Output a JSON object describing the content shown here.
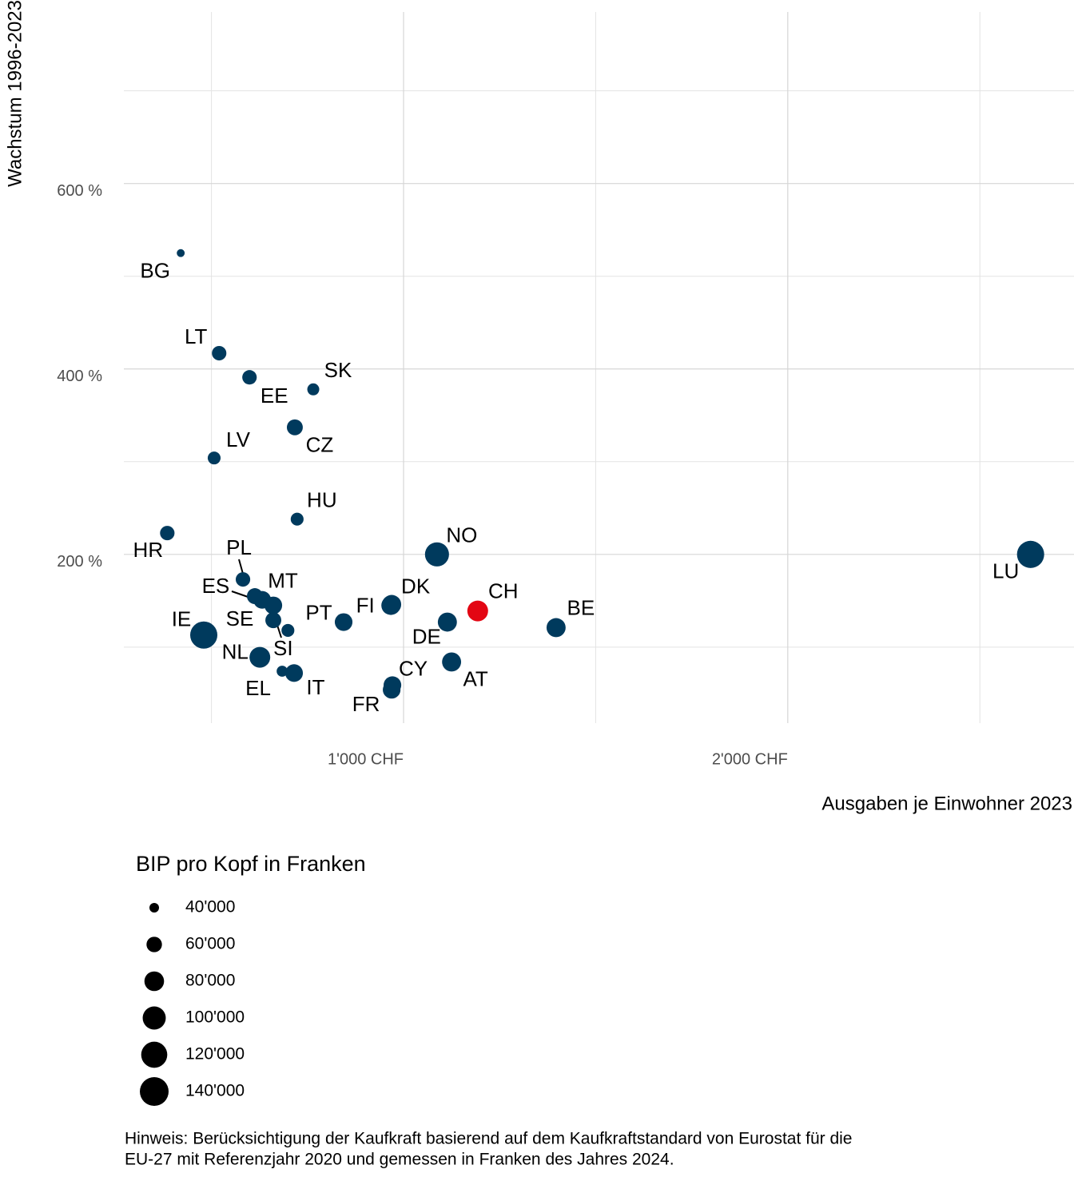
{
  "chart_data": {
    "type": "scatter",
    "ylabel": "Wachstum 1996-2023",
    "xlabel": "Ausgaben je Einwohner 2023",
    "labels": [
      "BG",
      "LT",
      "EE",
      "SK",
      "CZ",
      "LV",
      "HU",
      "HR",
      "NO",
      "LU",
      "PL",
      "ES",
      null,
      "MT",
      "SE",
      "SI",
      "IE",
      "NL",
      "EL",
      "IT",
      "PT",
      "FI",
      "DK",
      "DE",
      "CH",
      "BE",
      "AT",
      "CY",
      "FR"
    ],
    "x": [
      420,
      520,
      599,
      765,
      717,
      507,
      723,
      385,
      1087,
      2632,
      582,
      613,
      632,
      661,
      661,
      699,
      480,
      626,
      684,
      715,
      844,
      967,
      969,
      1114,
      1193,
      1397,
      1125,
      971,
      969
    ],
    "values": [
      525,
      417,
      391,
      378,
      337,
      304,
      238,
      223,
      200,
      200,
      173,
      155,
      151,
      145,
      129,
      118,
      113,
      89,
      74,
      72,
      127,
      145,
      146,
      127,
      139,
      121,
      84,
      59,
      54
    ],
    "sizes": [
      36000,
      56000,
      56000,
      47000,
      62000,
      50000,
      50000,
      56000,
      106000,
      128000,
      56000,
      62000,
      70000,
      70000,
      62000,
      50000,
      128000,
      86000,
      44000,
      70000,
      70000,
      77000,
      77000,
      77000,
      86000,
      77000,
      77000,
      70000,
      70000
    ],
    "colors": [
      "#003a5d",
      "#003a5d",
      "#003a5d",
      "#003a5d",
      "#003a5d",
      "#003a5d",
      "#003a5d",
      "#003a5d",
      "#003a5d",
      "#003a5d",
      "#003a5d",
      "#003a5d",
      "#003a5d",
      "#003a5d",
      "#003a5d",
      "#003a5d",
      "#003a5d",
      "#003a5d",
      "#003a5d",
      "#003a5d",
      "#003a5d",
      "#003a5d",
      "#003a5d",
      "#003a5d",
      "#e30613",
      "#003a5d",
      "#003a5d",
      "#003a5d",
      "#003a5d"
    ],
    "xlim": [
      272,
      2745
    ],
    "ylim": [
      18,
      785
    ],
    "xticks": [
      {
        "value": 1000,
        "label": "1'000 CHF"
      },
      {
        "value": 2000,
        "label": "2'000 CHF"
      }
    ],
    "yticks": [
      {
        "value": 200,
        "label": "200 %"
      },
      {
        "value": 400,
        "label": "400 %"
      },
      {
        "value": 600,
        "label": "600 %"
      }
    ],
    "xminorticks": [
      500,
      1500,
      2500
    ],
    "yminorticks": [
      100,
      300,
      500,
      700
    ],
    "grid": true,
    "legend_title": "BIP pro Kopf in Franken",
    "size_legend": [
      {
        "value": 40000,
        "label": "40'000"
      },
      {
        "value": 60000,
        "label": "60'000"
      },
      {
        "value": 80000,
        "label": "80'000"
      },
      {
        "value": 100000,
        "label": "100'000"
      },
      {
        "value": 120000,
        "label": "120'000"
      },
      {
        "value": 140000,
        "label": "140'000"
      }
    ],
    "note": [
      "Hinweis: Berücksichtigung der Kaufkraft basierend auf dem Kaufkraftstandard von Eurostat für die",
      "EU-27 mit Referenzjahr 2020 und gemessen in Franken des Jahres 2024."
    ]
  }
}
